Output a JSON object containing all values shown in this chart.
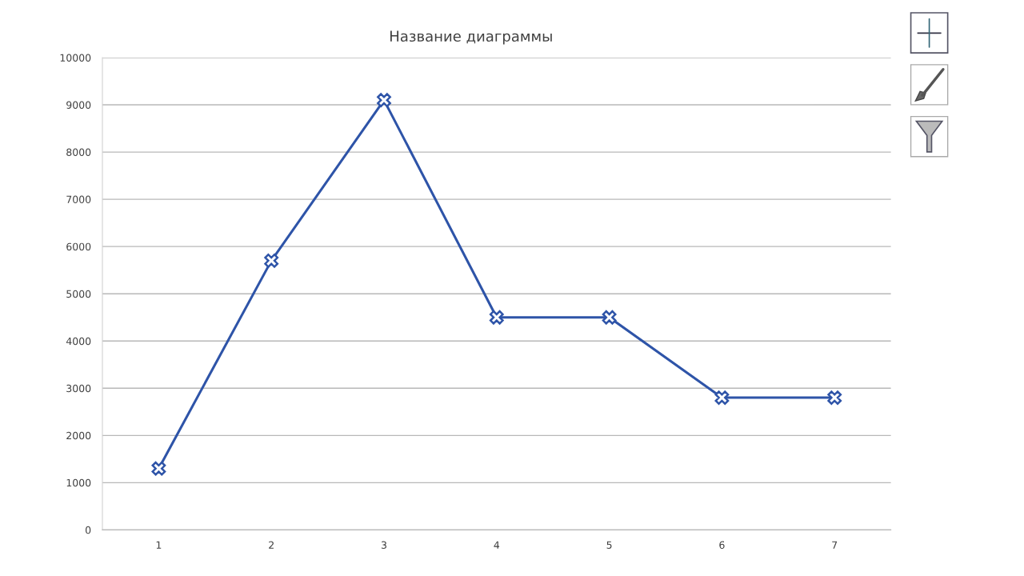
{
  "chart_data": {
    "type": "line",
    "title": "Название диаграммы",
    "categories": [
      "1",
      "2",
      "3",
      "4",
      "5",
      "6",
      "7"
    ],
    "series": [
      {
        "color": "#2e54a8",
        "values": [
          1300,
          5700,
          9100,
          4500,
          4500,
          2800,
          2800
        ]
      }
    ],
    "ylim": [
      0,
      10000
    ],
    "yticks": [
      0,
      1000,
      2000,
      3000,
      4000,
      5000,
      6000,
      7000,
      8000,
      9000,
      10000
    ],
    "grid": "y",
    "marker": "cross",
    "line_style": "solid"
  }
}
